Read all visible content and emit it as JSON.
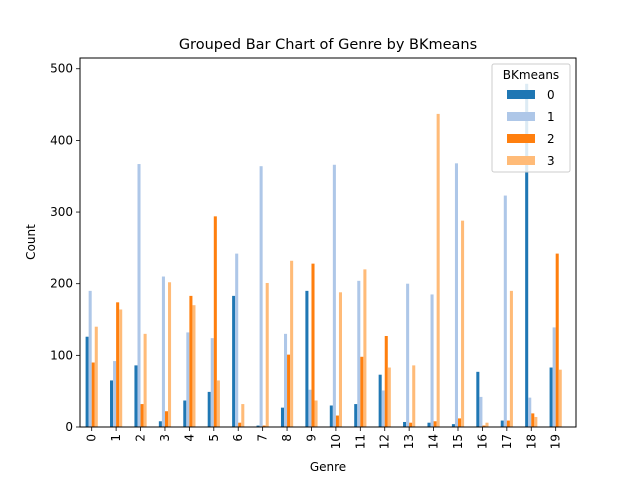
{
  "chart_data": {
    "type": "bar",
    "title": "Grouped Bar Chart of Genre by BKmeans",
    "xlabel": "Genre",
    "ylabel": "Count",
    "ylim": [
      0,
      515
    ],
    "yticks": [
      0,
      100,
      200,
      300,
      400,
      500
    ],
    "grid": false,
    "legend": {
      "title": "BKmeans",
      "placement": "top-right"
    },
    "categories": [
      "0",
      "1",
      "2",
      "3",
      "4",
      "5",
      "6",
      "7",
      "8",
      "9",
      "10",
      "11",
      "12",
      "13",
      "14",
      "15",
      "16",
      "17",
      "18",
      "19"
    ],
    "series": [
      {
        "name": "0",
        "color": "#1f77b4",
        "values": [
          126,
          65,
          86,
          8,
          37,
          49,
          183,
          2,
          27,
          190,
          30,
          32,
          73,
          7,
          6,
          4,
          77,
          9,
          479,
          83
        ]
      },
      {
        "name": "1",
        "color": "#aec7e8",
        "values": [
          190,
          92,
          367,
          210,
          132,
          124,
          242,
          364,
          130,
          52,
          366,
          204,
          51,
          200,
          185,
          368,
          42,
          323,
          41,
          139
        ]
      },
      {
        "name": "2",
        "color": "#ff7f0e",
        "values": [
          90,
          174,
          32,
          22,
          183,
          294,
          6,
          2,
          101,
          228,
          16,
          98,
          127,
          6,
          8,
          12,
          2,
          9,
          19,
          242
        ]
      },
      {
        "name": "3",
        "color": "#ffbb78",
        "values": [
          140,
          164,
          130,
          202,
          170,
          65,
          32,
          201,
          232,
          37,
          188,
          220,
          83,
          86,
          437,
          288,
          6,
          190,
          14,
          80
        ]
      }
    ]
  }
}
